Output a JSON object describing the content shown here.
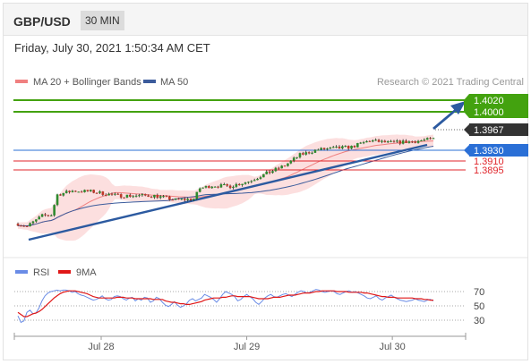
{
  "header": {
    "pair": "GBP/USD",
    "timeframe": "30 MIN",
    "timestamp": "Friday, July 30, 2021 1:50:34 AM CET"
  },
  "colors": {
    "resistance": "#43a20f",
    "support": "#2a6fd6",
    "pivot": "#333333",
    "minor_support": "#e0252b",
    "ma20": "#f08080",
    "ma50": "#3c5c9c",
    "rsi": "#6a8ce6",
    "rsi_ma": "#e01818",
    "trend_arrow": "#2c5aa0"
  },
  "chart_data": [
    {
      "type": "candlestick",
      "title": "",
      "legend": [
        {
          "label": "MA 20 + Bollinger Bands",
          "color": "#f08080"
        },
        {
          "label": "MA 50",
          "color": "#3c5c9c"
        }
      ],
      "legend_position": "top-left",
      "credit": "Research © 2021 Trading Central",
      "ylim": [
        1.3775,
        1.405
      ],
      "x_ticks": [
        {
          "label": "Jul 28",
          "index": 31
        },
        {
          "label": "Jul 29",
          "index": 79
        },
        {
          "label": "Jul 30",
          "index": 127
        }
      ],
      "levels": [
        {
          "label": "1.4020",
          "value": 1.402,
          "role": "resistance"
        },
        {
          "label": "1.4000",
          "value": 1.4,
          "role": "resistance"
        },
        {
          "label": "1.3967",
          "value": 1.3967,
          "role": "pivot"
        },
        {
          "label": "1.3930",
          "value": 1.393,
          "role": "support"
        },
        {
          "label": "1.3910",
          "value": 1.391,
          "role": "minor_support"
        },
        {
          "label": "1.3895",
          "value": 1.3895,
          "role": "minor_support"
        }
      ],
      "grid": false
    },
    {
      "type": "line",
      "legend": [
        {
          "label": "RSI",
          "color": "#6a8ce6"
        },
        {
          "label": "9MA",
          "color": "#e01818"
        }
      ],
      "legend_position": "top-left",
      "ylim": [
        15,
        85
      ],
      "y_ticks": [
        "70",
        "50",
        "30"
      ],
      "series": [
        {
          "name": "RSI",
          "values": [
            36,
            27,
            29,
            41,
            44,
            39,
            40,
            47,
            57,
            64,
            68,
            70,
            71,
            72,
            71,
            72,
            72,
            71,
            69,
            70,
            67,
            65,
            64,
            62,
            60,
            58,
            59,
            61,
            64,
            60,
            58,
            59,
            63,
            64,
            63,
            60,
            58,
            61,
            62,
            57,
            60,
            58,
            62,
            61,
            55,
            57,
            62,
            60,
            55,
            51,
            49,
            52,
            56,
            51,
            48,
            50,
            53,
            58,
            60,
            57,
            59,
            61,
            66,
            64,
            62,
            59,
            55,
            60,
            66,
            70,
            68,
            66,
            63,
            57,
            59,
            63,
            66,
            63,
            60,
            55,
            52,
            56,
            61,
            64,
            66,
            63,
            62,
            64,
            66,
            67,
            65,
            63,
            66,
            69,
            71,
            70,
            68,
            69,
            71,
            73,
            72,
            70,
            69,
            70,
            71,
            70,
            67,
            66,
            68,
            70,
            71,
            69,
            70,
            68,
            66,
            64,
            61,
            60,
            62,
            64,
            60,
            58,
            61,
            63,
            65,
            62,
            60,
            58,
            57,
            56,
            57,
            58,
            60,
            58,
            57,
            56,
            58,
            59,
            57
          ]
        },
        {
          "name": "9MA",
          "values": [
            41,
            38,
            35,
            35,
            37,
            39,
            40,
            42,
            45,
            49,
            53,
            57,
            61,
            64,
            67,
            69,
            70,
            71,
            71,
            71,
            70,
            69,
            68,
            67,
            65,
            63,
            62,
            61,
            61,
            61,
            61,
            61,
            61,
            62,
            62,
            62,
            61,
            61,
            61,
            60,
            60,
            60,
            60,
            60,
            60,
            59,
            59,
            59,
            59,
            57,
            56,
            55,
            55,
            54,
            53,
            53,
            52,
            52,
            53,
            54,
            55,
            56,
            58,
            59,
            60,
            61,
            61,
            61,
            62,
            62,
            63,
            64,
            64,
            63,
            63,
            63,
            63,
            63,
            62,
            61,
            60,
            60,
            60,
            60,
            61,
            62,
            62,
            62,
            63,
            64,
            65,
            65,
            65,
            66,
            67,
            68,
            68,
            68,
            69,
            70,
            70,
            71,
            71,
            71,
            71,
            71,
            70,
            70,
            70,
            70,
            69,
            69,
            69,
            69,
            69,
            68,
            68,
            67,
            66,
            65,
            64,
            63,
            63,
            62,
            62,
            62,
            61,
            61,
            61,
            61,
            61,
            61,
            60,
            60,
            60,
            59,
            59,
            58,
            58
          ]
        }
      ]
    }
  ]
}
